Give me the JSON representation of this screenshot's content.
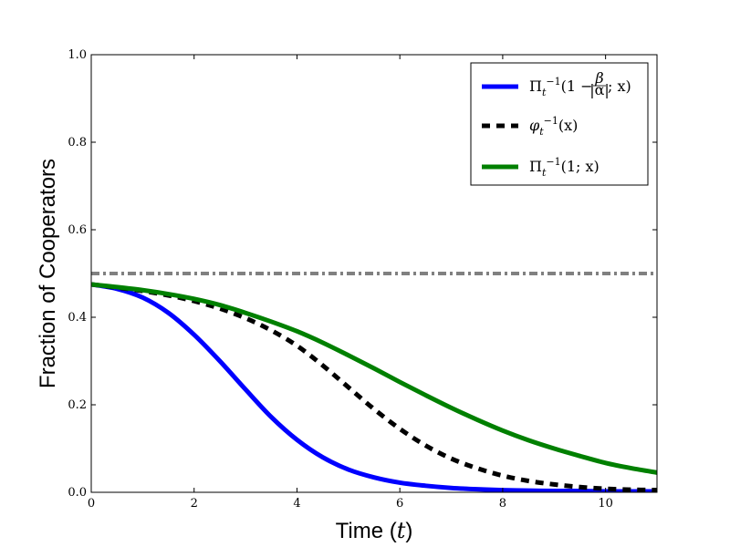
{
  "chart_data": {
    "type": "line",
    "xlabel": "Time",
    "xlabel_var": "t",
    "ylabel": "Fraction of Cooperators",
    "xlim": [
      0,
      11
    ],
    "ylim": [
      0,
      1.0
    ],
    "xticks": [
      0,
      2,
      4,
      6,
      8,
      10
    ],
    "yticks": [
      0.0,
      0.2,
      0.4,
      0.6,
      0.8,
      1.0
    ],
    "xtick_labels": [
      "0",
      "2",
      "4",
      "6",
      "8",
      "10"
    ],
    "ytick_labels": [
      "0.0",
      "0.2",
      "0.4",
      "0.6",
      "0.8",
      "1.0"
    ],
    "grid": false,
    "legend_position": "top-right",
    "reference_line": {
      "y": 0.5,
      "color": "#808080",
      "style": "dash-dot"
    },
    "series": [
      {
        "name": "Π_t^{-1}(1 − β/|α|; x)",
        "legend_parts": {
          "base": "Π",
          "sub": "t",
          "sup": "−1",
          "before_frac": "(1 − ",
          "frac_num": "β",
          "frac_den": "|α|",
          "after_frac": "; x)"
        },
        "color": "#0000ff",
        "style": "solid",
        "x": [
          0,
          0.5,
          1,
          1.5,
          2,
          2.5,
          3,
          3.5,
          4,
          4.5,
          5,
          5.5,
          6,
          6.5,
          7,
          7.5,
          8,
          8.5,
          9,
          9.5,
          10,
          10.5,
          11
        ],
        "y": [
          0.475,
          0.465,
          0.445,
          0.41,
          0.36,
          0.3,
          0.235,
          0.172,
          0.12,
          0.08,
          0.052,
          0.034,
          0.022,
          0.015,
          0.01,
          0.007,
          0.005,
          0.004,
          0.003,
          0.003,
          0.002,
          0.002,
          0.002
        ]
      },
      {
        "name": "φ_t^{-1}(x)",
        "legend_parts": {
          "base": "φ",
          "sub": "t",
          "sup": "−1",
          "rest": "(x)"
        },
        "color": "#000000",
        "style": "dashed",
        "x": [
          0,
          0.5,
          1,
          1.5,
          2,
          2.5,
          3,
          3.5,
          4,
          4.5,
          5,
          5.5,
          6,
          6.5,
          7,
          7.5,
          8,
          8.5,
          9,
          9.5,
          10,
          10.5,
          11
        ],
        "y": [
          0.475,
          0.468,
          0.46,
          0.45,
          0.437,
          0.42,
          0.398,
          0.37,
          0.335,
          0.29,
          0.24,
          0.19,
          0.145,
          0.107,
          0.077,
          0.055,
          0.038,
          0.026,
          0.018,
          0.012,
          0.008,
          0.006,
          0.005
        ]
      },
      {
        "name": "Π_t^{-1}(1; x)",
        "legend_parts": {
          "base": "Π",
          "sub": "t",
          "sup": "−1",
          "rest": "(1; x)"
        },
        "color": "#008000",
        "style": "solid",
        "x": [
          0,
          0.5,
          1,
          1.5,
          2,
          2.5,
          3,
          3.5,
          4,
          4.5,
          5,
          5.5,
          6,
          6.5,
          7,
          7.5,
          8,
          8.5,
          9,
          9.5,
          10,
          10.5,
          11
        ],
        "y": [
          0.475,
          0.469,
          0.462,
          0.453,
          0.442,
          0.428,
          0.41,
          0.39,
          0.368,
          0.342,
          0.313,
          0.283,
          0.252,
          0.222,
          0.193,
          0.166,
          0.141,
          0.119,
          0.1,
          0.083,
          0.067,
          0.055,
          0.045
        ]
      }
    ]
  }
}
